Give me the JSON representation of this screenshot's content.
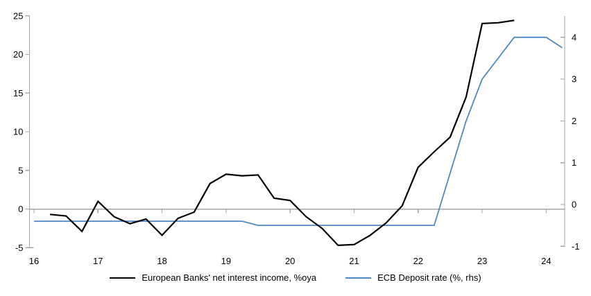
{
  "chart_data": {
    "type": "line",
    "title": "",
    "x_axis": {
      "tick_values": [
        2016,
        2017,
        2018,
        2019,
        2020,
        2021,
        2022,
        2023,
        2024
      ],
      "tick_labels": [
        "16",
        "17",
        "18",
        "19",
        "20",
        "21",
        "22",
        "23",
        "24"
      ],
      "unit": "year, quarterly data points",
      "range": [
        2015.9,
        2024.45
      ]
    },
    "left_axis": {
      "ticks": [
        25,
        20,
        15,
        10,
        5,
        0,
        -5
      ],
      "range": [
        -5,
        25
      ]
    },
    "right_axis": {
      "ticks": [
        4,
        3,
        2,
        1,
        0,
        -1
      ],
      "range": [
        -1.05,
        4.5
      ]
    },
    "zero_gridline": true,
    "grid": "zero-line-only",
    "legend_position": "bottom",
    "series": [
      {
        "id": "nii",
        "name": "European Banks' net interest income, %oya",
        "type": "line",
        "axis": "left",
        "color": "#000000",
        "x_start": 2016.25,
        "x_step": 0.25,
        "x_end": 2023.5,
        "values": [
          -0.7,
          -0.9,
          -2.9,
          1.0,
          -1.0,
          -1.9,
          -1.3,
          -3.4,
          -1.2,
          -0.4,
          3.3,
          4.5,
          4.3,
          4.4,
          1.4,
          1.1,
          -1.0,
          -2.5,
          -4.7,
          -4.6,
          -3.4,
          -1.8,
          0.4,
          5.4,
          7.4,
          9.3,
          14.5,
          24.0,
          24.1,
          24.4
        ]
      },
      {
        "id": "ecb",
        "name": "ECB Deposit rate (%, rhs)",
        "type": "line",
        "axis": "right",
        "color": "#4E87C6",
        "x_start": 2016.0,
        "x_step": 0.25,
        "x_end": 2024.25,
        "values": [
          -0.4,
          -0.4,
          -0.4,
          -0.4,
          -0.4,
          -0.4,
          -0.4,
          -0.4,
          -0.4,
          -0.4,
          -0.4,
          -0.4,
          -0.4,
          -0.4,
          -0.5,
          -0.5,
          -0.5,
          -0.5,
          -0.5,
          -0.5,
          -0.5,
          -0.5,
          -0.5,
          -0.5,
          -0.5,
          -0.5,
          0.75,
          2.0,
          3.0,
          3.5,
          4.0,
          4.0,
          4.0,
          3.75
        ]
      }
    ]
  },
  "legend": {
    "items": [
      {
        "label": "European Banks' net interest income, %oya",
        "color": "#000000"
      },
      {
        "label": "ECB Deposit rate (%, rhs)",
        "color": "#4E87C6"
      }
    ]
  },
  "colors": {
    "background": "#FFFFFF",
    "axis": "#A6A6A6",
    "gridline": "#A6A6A6",
    "text": "#000000"
  }
}
